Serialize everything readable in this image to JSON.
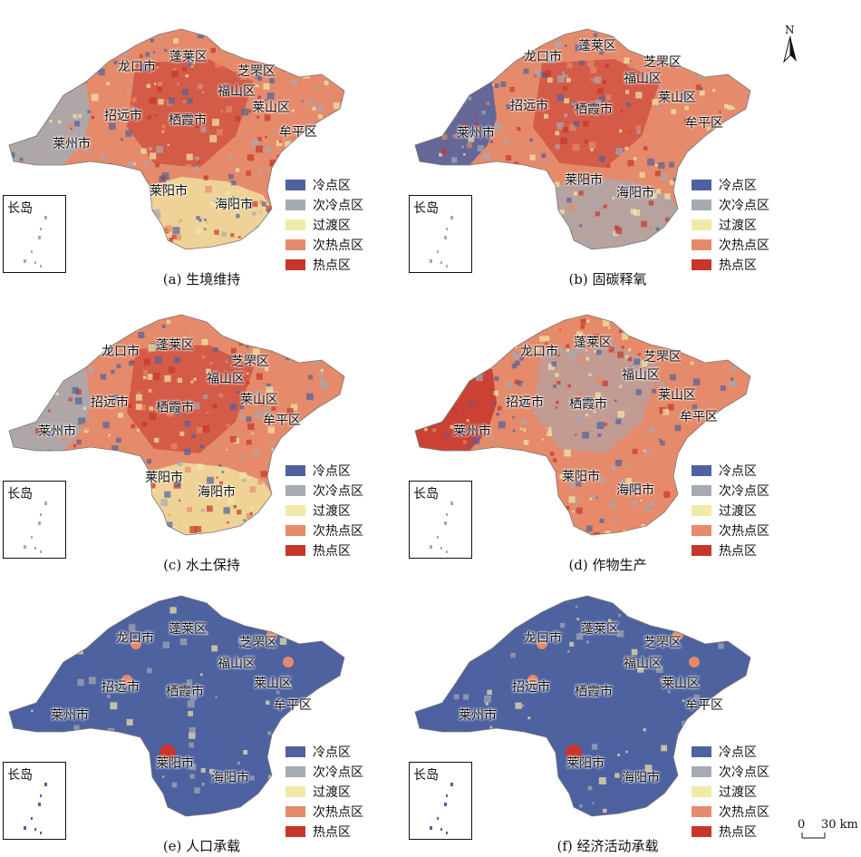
{
  "legend": {
    "classes": [
      {
        "label": "冷点区",
        "color": "#4e62a0"
      },
      {
        "label": "次冷点区",
        "color": "#a6aab2"
      },
      {
        "label": "过渡区",
        "color": "#f1eaa6"
      },
      {
        "label": "次热点区",
        "color": "#e58a6a"
      },
      {
        "label": "热点区",
        "color": "#c7352b"
      }
    ]
  },
  "inset_label": "长岛",
  "north_label": "N",
  "scale": {
    "zero": "0",
    "distance": "30 km"
  },
  "panels": [
    {
      "caption": "(a) 生境维持",
      "base_color": "#e58a6a",
      "west_color": "#a6aab2",
      "south_color": "#f1eaa6",
      "accent": "#c7352b"
    },
    {
      "caption": "(b) 固碳释氧",
      "base_color": "#e58a6a",
      "west_color": "#4e62a0",
      "south_color": "#a6aab2",
      "accent": "#c7352b"
    },
    {
      "caption": "(c) 水土保持",
      "base_color": "#e58a6a",
      "west_color": "#a6aab2",
      "south_color": "#f1eaa6",
      "accent": "#c7352b"
    },
    {
      "caption": "(d) 作物生产",
      "base_color": "#e58a6a",
      "west_color": "#c7352b",
      "south_color": "#e58a6a",
      "accent": "#a6aab2"
    },
    {
      "caption": "(e) 人口承载",
      "base_color": "#4e62a0",
      "west_color": "#4e62a0",
      "south_color": "#4e62a0",
      "accent": "#e58a6a"
    },
    {
      "caption": "(f) 经济活动承载",
      "base_color": "#4e62a0",
      "west_color": "#4e62a0",
      "south_color": "#4e62a0",
      "accent": "#e58a6a"
    }
  ],
  "cities": {
    "penglai": "蓬莱区",
    "longkou": "龙口市",
    "zhifu": "芝罘区",
    "fushan": "福山区",
    "laishan": "莱山区",
    "zhaoyuan": "招远市",
    "qixia": "栖霞市",
    "muping": "牟平区",
    "laizhou": "莱州市",
    "laiyang": "莱阳市",
    "haiyang": "海阳市"
  }
}
